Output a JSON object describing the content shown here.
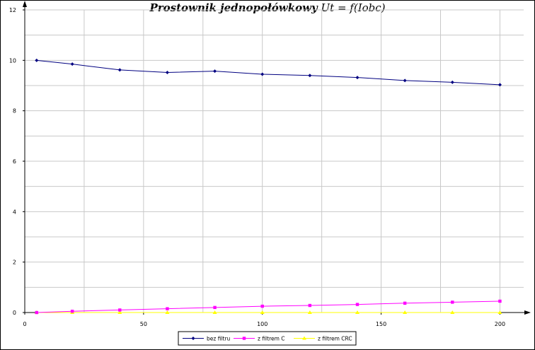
{
  "chart_data": {
    "type": "line",
    "title": "Prostownik jednopołówkowy",
    "subtitle": "Ut = f(Iobc)",
    "xlabel": "",
    "ylabel": "",
    "xlim": [
      0,
      210
    ],
    "ylim": [
      0,
      12
    ],
    "x_ticks": [
      0,
      50,
      100,
      150,
      200
    ],
    "y_ticks": [
      0,
      2,
      4,
      6,
      8,
      10,
      12
    ],
    "grid": true,
    "legend_position": "bottom",
    "series": [
      {
        "name": "bez filtru",
        "color": "#000080",
        "marker": "diamond",
        "x": [
          5,
          20,
          40,
          60,
          80,
          100,
          120,
          140,
          160,
          180,
          200
        ],
        "y": [
          10.0,
          9.85,
          9.62,
          9.52,
          9.57,
          9.45,
          9.4,
          9.32,
          9.2,
          9.13,
          9.03
        ]
      },
      {
        "name": "z filtrem C",
        "color": "#ff00ff",
        "marker": "square",
        "x": [
          5,
          20,
          40,
          60,
          80,
          100,
          120,
          140,
          160,
          180,
          200
        ],
        "y": [
          0.0,
          0.05,
          0.1,
          0.15,
          0.2,
          0.25,
          0.28,
          0.32,
          0.37,
          0.41,
          0.45
        ]
      },
      {
        "name": "z filtrem CRC",
        "color": "#ffff00",
        "marker": "triangle",
        "x": [
          5,
          20,
          40,
          60,
          80,
          100,
          120,
          140,
          160,
          180,
          200
        ],
        "y": [
          0,
          0,
          0,
          0,
          0,
          0,
          0,
          0,
          0,
          0,
          0
        ]
      }
    ]
  }
}
